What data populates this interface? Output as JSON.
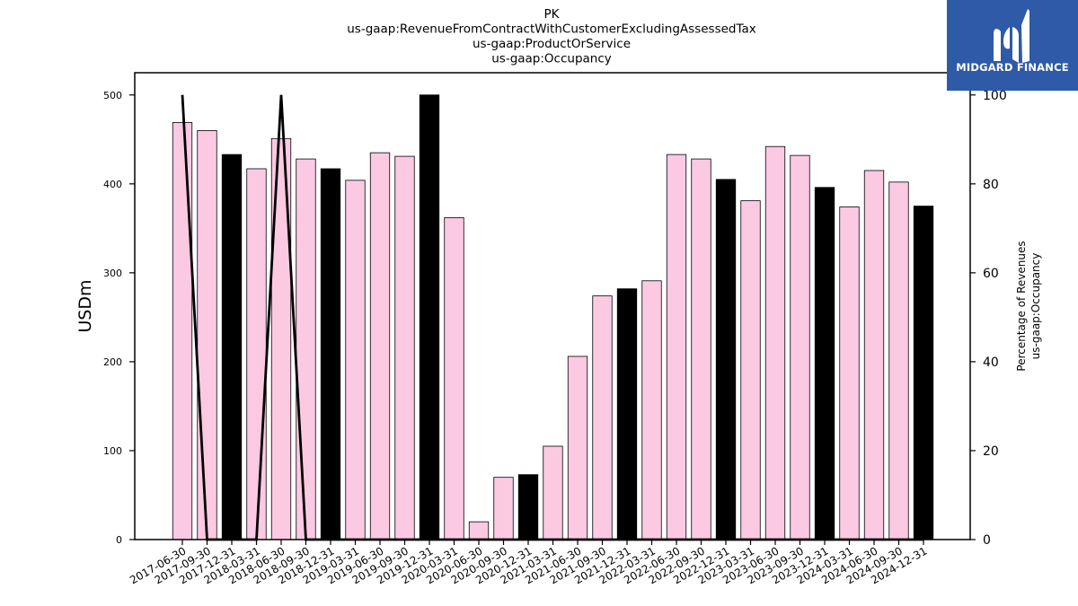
{
  "chart_data": {
    "type": "bar",
    "title_lines": [
      "PK",
      "us-gaap:RevenueFromContractWithCustomerExcludingAssessedTax",
      "us-gaap:ProductOrService",
      "us-gaap:Occupancy"
    ],
    "ylabel": "USDm",
    "ylabel_right_lines": [
      "Percentage of Revenues",
      "us-gaap:Occupancy"
    ],
    "ylim": [
      0,
      525
    ],
    "ylim_right": [
      0,
      105
    ],
    "yticks": [
      0,
      100,
      200,
      300,
      400,
      500
    ],
    "yticks_right": [
      0,
      20,
      40,
      60,
      80,
      100
    ],
    "categories": [
      "2017-06-30",
      "2017-09-30",
      "2017-12-31",
      "2018-03-31",
      "2018-06-30",
      "2018-09-30",
      "2018-12-31",
      "2019-03-31",
      "2019-06-30",
      "2019-09-30",
      "2019-12-31",
      "2020-03-31",
      "2020-06-30",
      "2020-09-30",
      "2020-12-31",
      "2021-03-31",
      "2021-06-30",
      "2021-09-30",
      "2021-12-31",
      "2022-03-31",
      "2022-06-30",
      "2022-09-30",
      "2022-12-31",
      "2023-03-31",
      "2023-06-30",
      "2023-09-30",
      "2023-12-31",
      "2024-03-31",
      "2024-06-30",
      "2024-09-30",
      "2024-12-31"
    ],
    "series": [
      {
        "values": [
          469,
          460,
          433,
          417,
          451,
          428,
          417,
          404,
          435,
          431,
          500,
          362,
          20,
          70,
          73,
          105,
          206,
          274,
          282,
          291,
          433,
          428,
          405,
          381,
          442,
          432,
          396,
          374,
          415,
          402,
          375
        ]
      },
      {
        "axis": "right",
        "type": "line",
        "values": [
          100,
          0,
          0,
          0,
          100,
          0,
          0,
          0,
          0,
          0,
          0,
          0,
          0,
          0,
          0,
          0,
          0,
          0,
          0,
          0,
          0,
          0,
          0,
          0,
          0,
          0,
          0,
          0,
          0,
          0,
          0
        ]
      }
    ],
    "bar_highlight": [
      false,
      false,
      true,
      false,
      false,
      false,
      true,
      false,
      false,
      false,
      true,
      false,
      false,
      false,
      true,
      false,
      false,
      false,
      true,
      false,
      false,
      false,
      true,
      false,
      false,
      false,
      true,
      false,
      false,
      false,
      true
    ],
    "colors": {
      "bar": "#fcc9e3",
      "bar_highlight": "#000000",
      "line": "#000000"
    },
    "grid": false
  },
  "logo": {
    "text": "MIDGARD FINANCE"
  }
}
